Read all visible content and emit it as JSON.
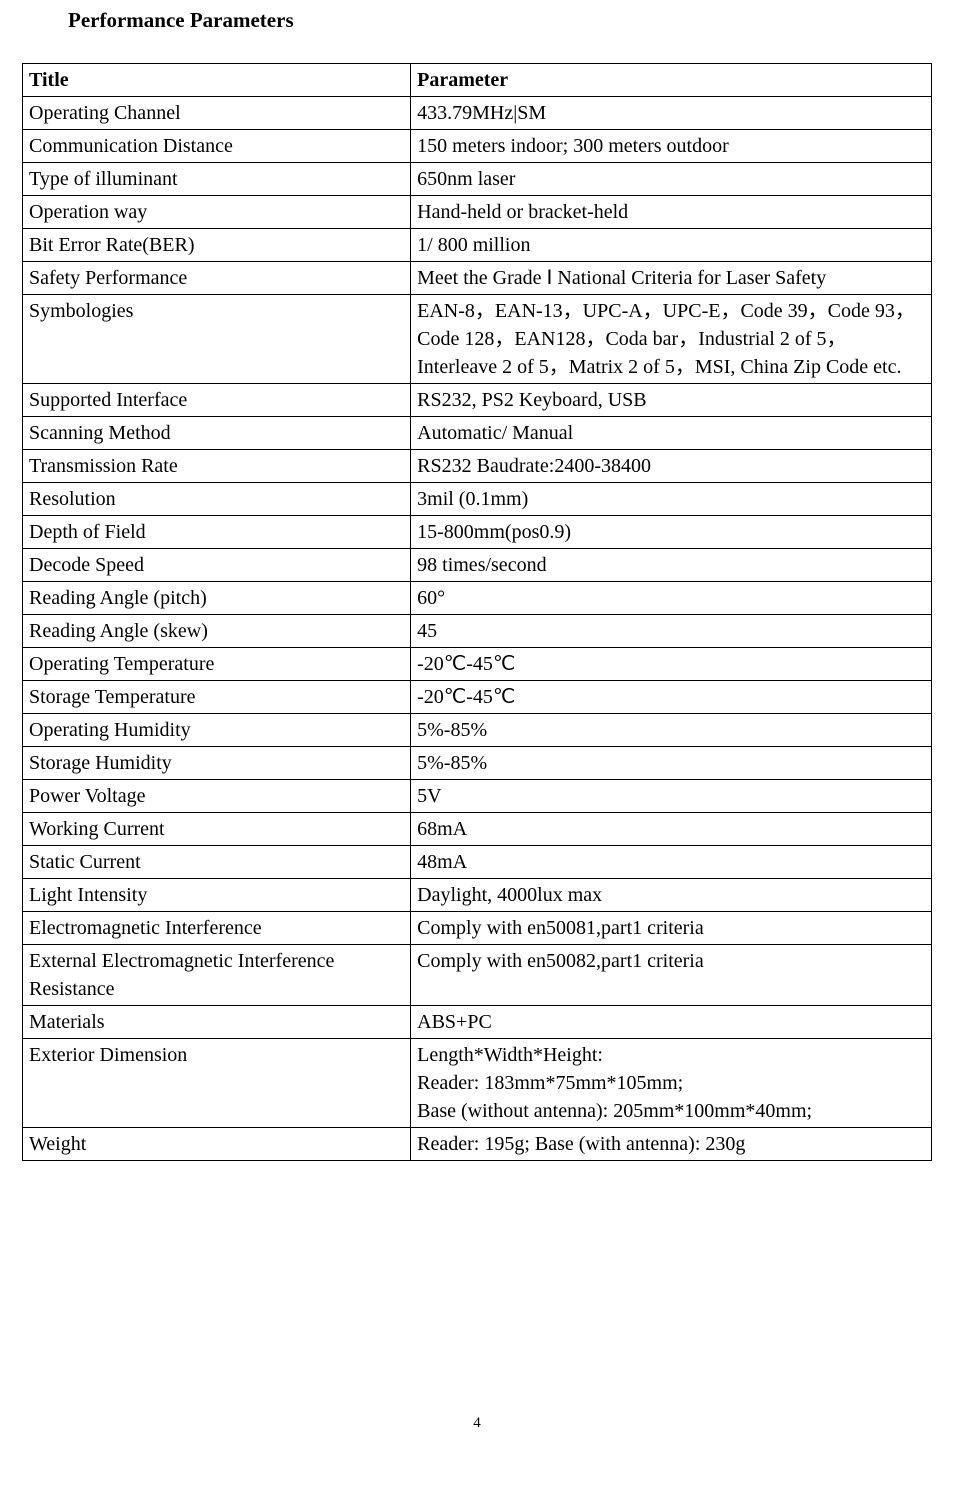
{
  "page": {
    "title": "Performance Parameters",
    "number": "4"
  },
  "table": {
    "header": {
      "title": "Title",
      "parameter": "Parameter"
    },
    "rows": [
      {
        "title": "Operating Channel",
        "parameter": "433.79MHz|SM"
      },
      {
        "title": "Communication Distance",
        "parameter": "150 meters indoor; 300   meters outdoor"
      },
      {
        "title": "Type of illuminant",
        "parameter": "650nm laser"
      },
      {
        "title": "Operation way",
        "parameter": "Hand-held or bracket-held"
      },
      {
        "title": "Bit Error Rate(BER)",
        "parameter": "1/ 800 million"
      },
      {
        "title": "Safety Performance",
        "parameter": "Meet the Grade Ⅰ National Criteria for Laser Safety",
        "justify": true
      },
      {
        "title": "Symbologies",
        "parameter": "EAN-8，EAN-13，UPC-A，UPC-E，Code 39，Code 93，Code 128，EAN128，Coda bar，Industrial 2 of 5，Interleave 2 of 5，Matrix 2 of 5，MSI, China Zip Code etc.",
        "justify": true
      },
      {
        "title": "Supported Interface",
        "parameter": "RS232, PS2 Keyboard, USB"
      },
      {
        "title": "Scanning Method",
        "parameter": "Automatic/ Manual"
      },
      {
        "title": "Transmission Rate",
        "parameter": "RS232 Baudrate:2400-38400"
      },
      {
        "title": "Resolution",
        "parameter": "3mil (0.1mm)"
      },
      {
        "title": "Depth of Field",
        "parameter": "15-800mm(pos0.9)"
      },
      {
        "title": "Decode Speed",
        "parameter": "98 times/second"
      },
      {
        "title": "Reading Angle (pitch)",
        "parameter": "60°"
      },
      {
        "title": "Reading Angle (skew)",
        "parameter": "45"
      },
      {
        "title": "Operating Temperature",
        "parameter": "-20℃-45℃"
      },
      {
        "title": "Storage Temperature",
        "parameter": "-20℃-45℃"
      },
      {
        "title": "Operating Humidity",
        "parameter": "5%-85%"
      },
      {
        "title": "Storage Humidity",
        "parameter": "5%-85%"
      },
      {
        "title": "Power Voltage",
        "parameter": "5V"
      },
      {
        "title": "Working Current",
        "parameter": "68mA"
      },
      {
        "title": "Static Current",
        "parameter": "48mA"
      },
      {
        "title": "Light Intensity",
        "parameter": "Daylight, 4000lux max"
      },
      {
        "title": "Electromagnetic Interference",
        "parameter": "Comply with en50081,part1 criteria"
      },
      {
        "title": "External Electromagnetic Interference Resistance",
        "parameter": "Comply with en50082,part1 criteria",
        "titleJustify": true
      },
      {
        "title": "Materials",
        "parameter": "ABS+PC"
      },
      {
        "title": "Exterior Dimension",
        "parameter_lines": [
          "Length*Width*Height:",
          "Reader: 183mm*75mm*105mm;",
          "Base (without antenna): 205mm*100mm*40mm;"
        ]
      },
      {
        "title": "Weight",
        "parameter": "Reader: 195g; Base (with antenna): 230g"
      }
    ]
  },
  "style": {
    "font_family": "Times New Roman",
    "font_size_pt": 12,
    "text_color": "#000000",
    "background_color": "#ffffff",
    "border_color": "#000000",
    "col_title_width_pct": 42.7,
    "col_param_width_pct": 57.3
  }
}
